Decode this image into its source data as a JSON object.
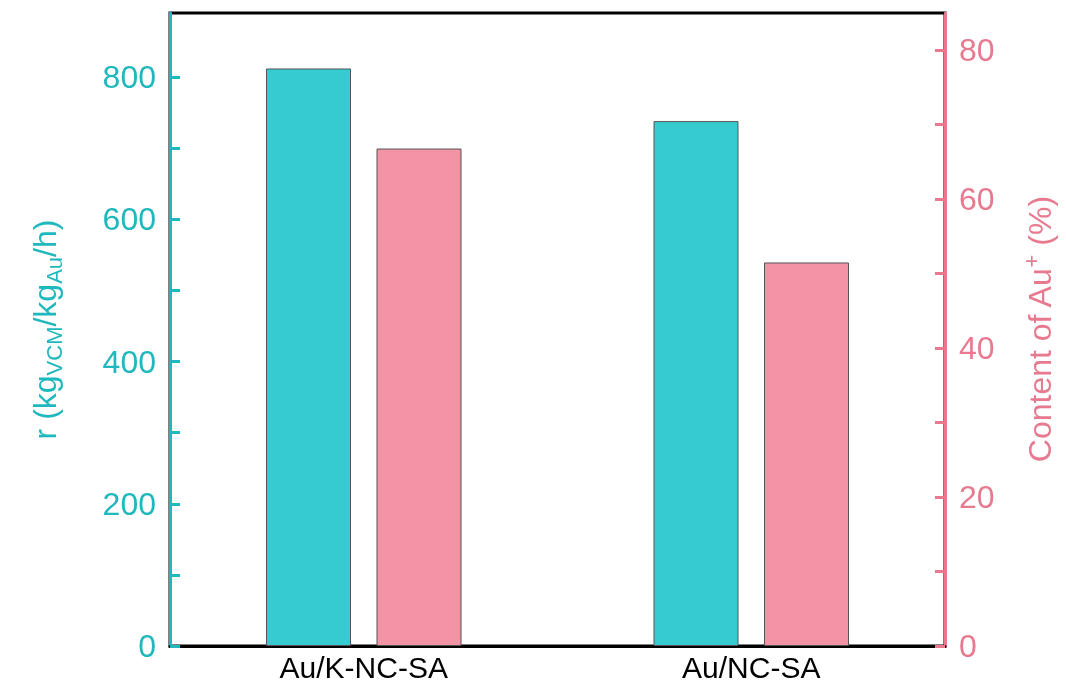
{
  "chart_data": {
    "type": "bar",
    "categories": [
      "Au/K-NC-SA",
      "Au/NC-SA"
    ],
    "ylabel": "r (kg$_{VCM}$/kg$_{Au}$/h)",
    "y2label": "Content of Au$^{+}$ (%)",
    "series": [
      {
        "color": "#36cbd0",
        "values": [
          812,
          738
        ]
      },
      {
        "color": "#f493a6",
        "values": [
          66.8,
          51.5
        ],
        "axis": "y2"
      }
    ],
    "ylim": [
      0,
      890
    ],
    "yticks": [
      0,
      {
        "value": 100,
        "label": null
      },
      200,
      {
        "value": 300,
        "label": null
      },
      400,
      {
        "value": 500,
        "label": null
      },
      600,
      {
        "value": 700,
        "label": null
      },
      800
    ],
    "y2lim": [
      0,
      85
    ],
    "y2ticks": [
      0,
      {
        "value": 10,
        "label": null
      },
      20,
      {
        "value": 30,
        "label": null
      },
      40,
      {
        "value": 50,
        "label": null
      },
      60,
      {
        "value": 70,
        "label": null
      },
      80
    ]
  }
}
